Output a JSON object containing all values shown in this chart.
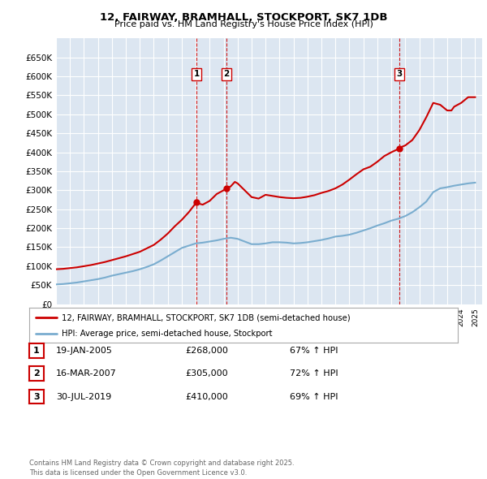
{
  "title": "12, FAIRWAY, BRAMHALL, STOCKPORT, SK7 1DB",
  "subtitle": "Price paid vs. HM Land Registry's House Price Index (HPI)",
  "ylim": [
    0,
    700000
  ],
  "yticks": [
    0,
    50000,
    100000,
    150000,
    200000,
    250000,
    300000,
    350000,
    400000,
    450000,
    500000,
    550000,
    600000,
    650000
  ],
  "ytick_labels": [
    "£0",
    "£50K",
    "£100K",
    "£150K",
    "£200K",
    "£250K",
    "£300K",
    "£350K",
    "£400K",
    "£450K",
    "£500K",
    "£550K",
    "£600K",
    "£650K"
  ],
  "background_color": "#ffffff",
  "plot_bg_color": "#dce6f1",
  "grid_color": "#ffffff",
  "red_line_color": "#cc0000",
  "blue_line_color": "#7aadcf",
  "sales": [
    {
      "date_num": 2005.05,
      "price": 268000,
      "label": "1"
    },
    {
      "date_num": 2007.21,
      "price": 305000,
      "label": "2"
    },
    {
      "date_num": 2019.58,
      "price": 410000,
      "label": "3"
    }
  ],
  "sale_vline_color": "#cc0000",
  "legend_entry1": "12, FAIRWAY, BRAMHALL, STOCKPORT, SK7 1DB (semi-detached house)",
  "legend_entry2": "HPI: Average price, semi-detached house, Stockport",
  "table_rows": [
    {
      "num": "1",
      "date": "19-JAN-2005",
      "price": "£268,000",
      "change": "67% ↑ HPI"
    },
    {
      "num": "2",
      "date": "16-MAR-2007",
      "price": "£305,000",
      "change": "72% ↑ HPI"
    },
    {
      "num": "3",
      "date": "30-JUL-2019",
      "price": "£410,000",
      "change": "69% ↑ HPI"
    }
  ],
  "footer": "Contains HM Land Registry data © Crown copyright and database right 2025.\nThis data is licensed under the Open Government Licence v3.0.",
  "hpi_data": {
    "years": [
      1995.0,
      1995.5,
      1996.0,
      1996.5,
      1997.0,
      1997.5,
      1998.0,
      1998.5,
      1999.0,
      1999.5,
      2000.0,
      2000.5,
      2001.0,
      2001.5,
      2002.0,
      2002.5,
      2003.0,
      2003.5,
      2004.0,
      2004.5,
      2005.0,
      2005.5,
      2006.0,
      2006.5,
      2007.0,
      2007.5,
      2008.0,
      2008.5,
      2009.0,
      2009.5,
      2010.0,
      2010.5,
      2011.0,
      2011.5,
      2012.0,
      2012.5,
      2013.0,
      2013.5,
      2014.0,
      2014.5,
      2015.0,
      2015.5,
      2016.0,
      2016.5,
      2017.0,
      2017.5,
      2018.0,
      2018.5,
      2019.0,
      2019.5,
      2020.0,
      2020.5,
      2021.0,
      2021.5,
      2022.0,
      2022.5,
      2023.0,
      2023.5,
      2024.0,
      2024.5,
      2025.0
    ],
    "values": [
      52000,
      53000,
      55000,
      57000,
      60000,
      63000,
      66000,
      70000,
      75000,
      79000,
      83000,
      87000,
      92000,
      98000,
      105000,
      115000,
      126000,
      137000,
      148000,
      154000,
      160000,
      162000,
      165000,
      168000,
      172000,
      175000,
      172000,
      165000,
      158000,
      158000,
      160000,
      163000,
      163000,
      162000,
      160000,
      161000,
      163000,
      166000,
      169000,
      173000,
      178000,
      180000,
      183000,
      188000,
      194000,
      200000,
      207000,
      213000,
      220000,
      225000,
      232000,
      242000,
      255000,
      270000,
      295000,
      305000,
      308000,
      312000,
      315000,
      318000,
      320000
    ]
  },
  "property_data": {
    "years": [
      1995.0,
      1995.5,
      1996.0,
      1996.5,
      1997.0,
      1997.5,
      1998.0,
      1998.5,
      1999.0,
      1999.5,
      2000.0,
      2000.5,
      2001.0,
      2001.5,
      2002.0,
      2002.5,
      2003.0,
      2003.5,
      2004.0,
      2004.5,
      2005.05,
      2005.2,
      2005.5,
      2006.0,
      2006.5,
      2007.0,
      2007.21,
      2007.5,
      2007.8,
      2008.0,
      2008.5,
      2009.0,
      2009.5,
      2010.0,
      2010.5,
      2011.0,
      2011.5,
      2012.0,
      2012.5,
      2013.0,
      2013.5,
      2014.0,
      2014.5,
      2015.0,
      2015.5,
      2016.0,
      2016.5,
      2017.0,
      2017.5,
      2018.0,
      2018.5,
      2019.0,
      2019.58,
      2019.8,
      2020.0,
      2020.5,
      2021.0,
      2021.5,
      2022.0,
      2022.5,
      2023.0,
      2023.3,
      2023.5,
      2024.0,
      2024.5,
      2025.0
    ],
    "values": [
      92000,
      93000,
      95000,
      97000,
      100000,
      103000,
      107000,
      111000,
      116000,
      121000,
      126000,
      132000,
      138000,
      147000,
      156000,
      170000,
      186000,
      205000,
      222000,
      242000,
      268000,
      265000,
      262000,
      272000,
      290000,
      300000,
      305000,
      310000,
      322000,
      318000,
      300000,
      282000,
      278000,
      288000,
      285000,
      282000,
      280000,
      279000,
      280000,
      283000,
      287000,
      293000,
      298000,
      305000,
      315000,
      328000,
      342000,
      355000,
      362000,
      375000,
      390000,
      400000,
      410000,
      415000,
      418000,
      432000,
      458000,
      492000,
      530000,
      525000,
      510000,
      510000,
      520000,
      530000,
      545000,
      545000
    ]
  }
}
